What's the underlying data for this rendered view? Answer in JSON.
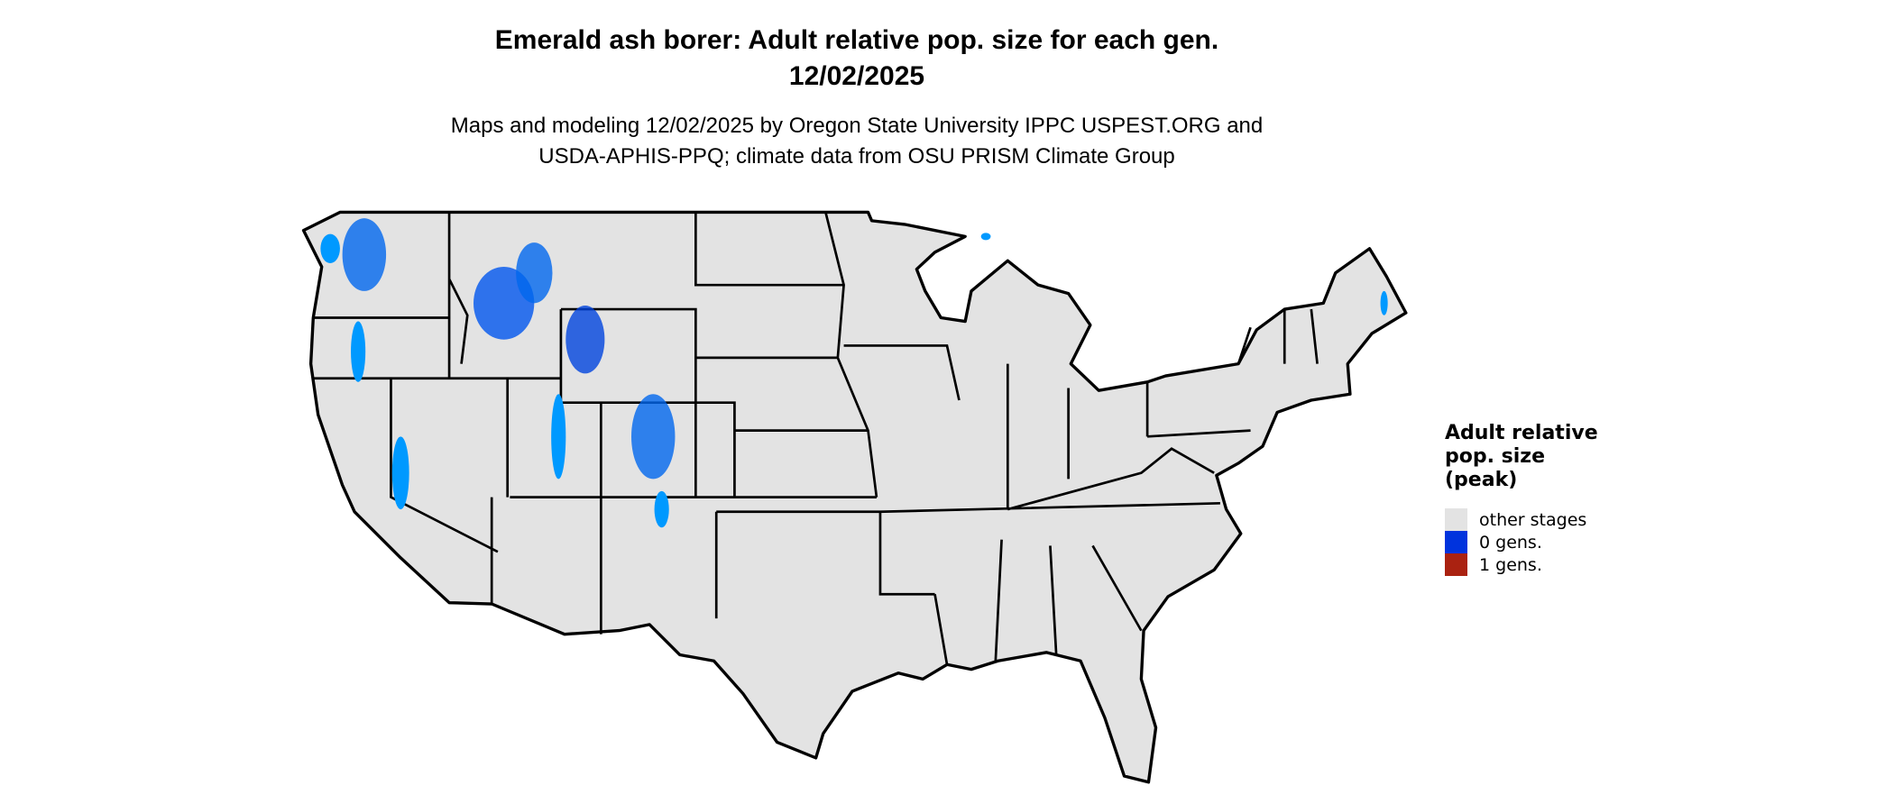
{
  "title": {
    "line1": "Emerald ash borer: Adult relative pop. size for each gen.",
    "line2": "12/02/2025"
  },
  "subtitle": {
    "line1": "Maps and modeling 12/02/2025 by Oregon State University IPPC USPEST.ORG and",
    "line2": "USDA-APHIS-PPQ; climate data from OSU PRISM Climate Group"
  },
  "legend": {
    "title_lines": [
      "Adult relative",
      "pop. size",
      "(peak)"
    ],
    "items": [
      {
        "label": "other stages",
        "color": "#e3e3e3"
      },
      {
        "label": "0 gens.",
        "color": "#0033dd"
      },
      {
        "label": "1 gens.",
        "color": "#aa2211"
      }
    ]
  },
  "map": {
    "region": "contiguous United States",
    "fill_color": "#e3e3e3",
    "border_color": "#000000",
    "highlight_colors": [
      "#0033dd",
      "#0066ee",
      "#0099ff"
    ]
  }
}
